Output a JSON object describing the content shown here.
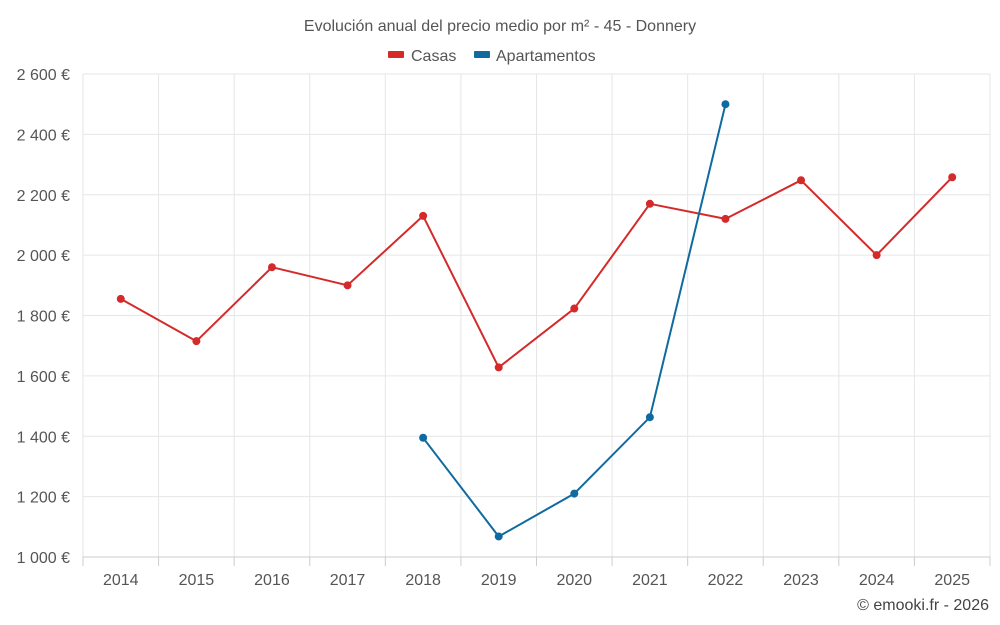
{
  "chart_data": {
    "type": "line",
    "title": "Evolución anual del precio medio por m² - 45 - Donnery",
    "categories": [
      "2014",
      "2015",
      "2016",
      "2017",
      "2018",
      "2019",
      "2020",
      "2021",
      "2022",
      "2023",
      "2024",
      "2025"
    ],
    "series": [
      {
        "name": "Casas",
        "color": "#d42a2a",
        "values": [
          1855,
          1715,
          1960,
          1900,
          2130,
          1628,
          1823,
          2170,
          2120,
          2248,
          2000,
          2258
        ]
      },
      {
        "name": "Apartamentos",
        "color": "#0f6aa0",
        "values": [
          null,
          null,
          null,
          null,
          1395,
          1068,
          1210,
          1463,
          2500,
          null,
          null,
          null
        ]
      }
    ],
    "ylim": [
      1000,
      2600
    ],
    "yticks": [
      1000,
      1200,
      1400,
      1600,
      1800,
      2000,
      2200,
      2400,
      2600
    ],
    "ytick_labels": [
      "1 000 €",
      "1 200 €",
      "1 400 €",
      "1 600 €",
      "1 800 €",
      "2 000 €",
      "2 200 €",
      "2 400 €",
      "2 600 €"
    ],
    "legend_position": "top-center",
    "grid": true
  },
  "credit": "© emooki.fr - 2026"
}
